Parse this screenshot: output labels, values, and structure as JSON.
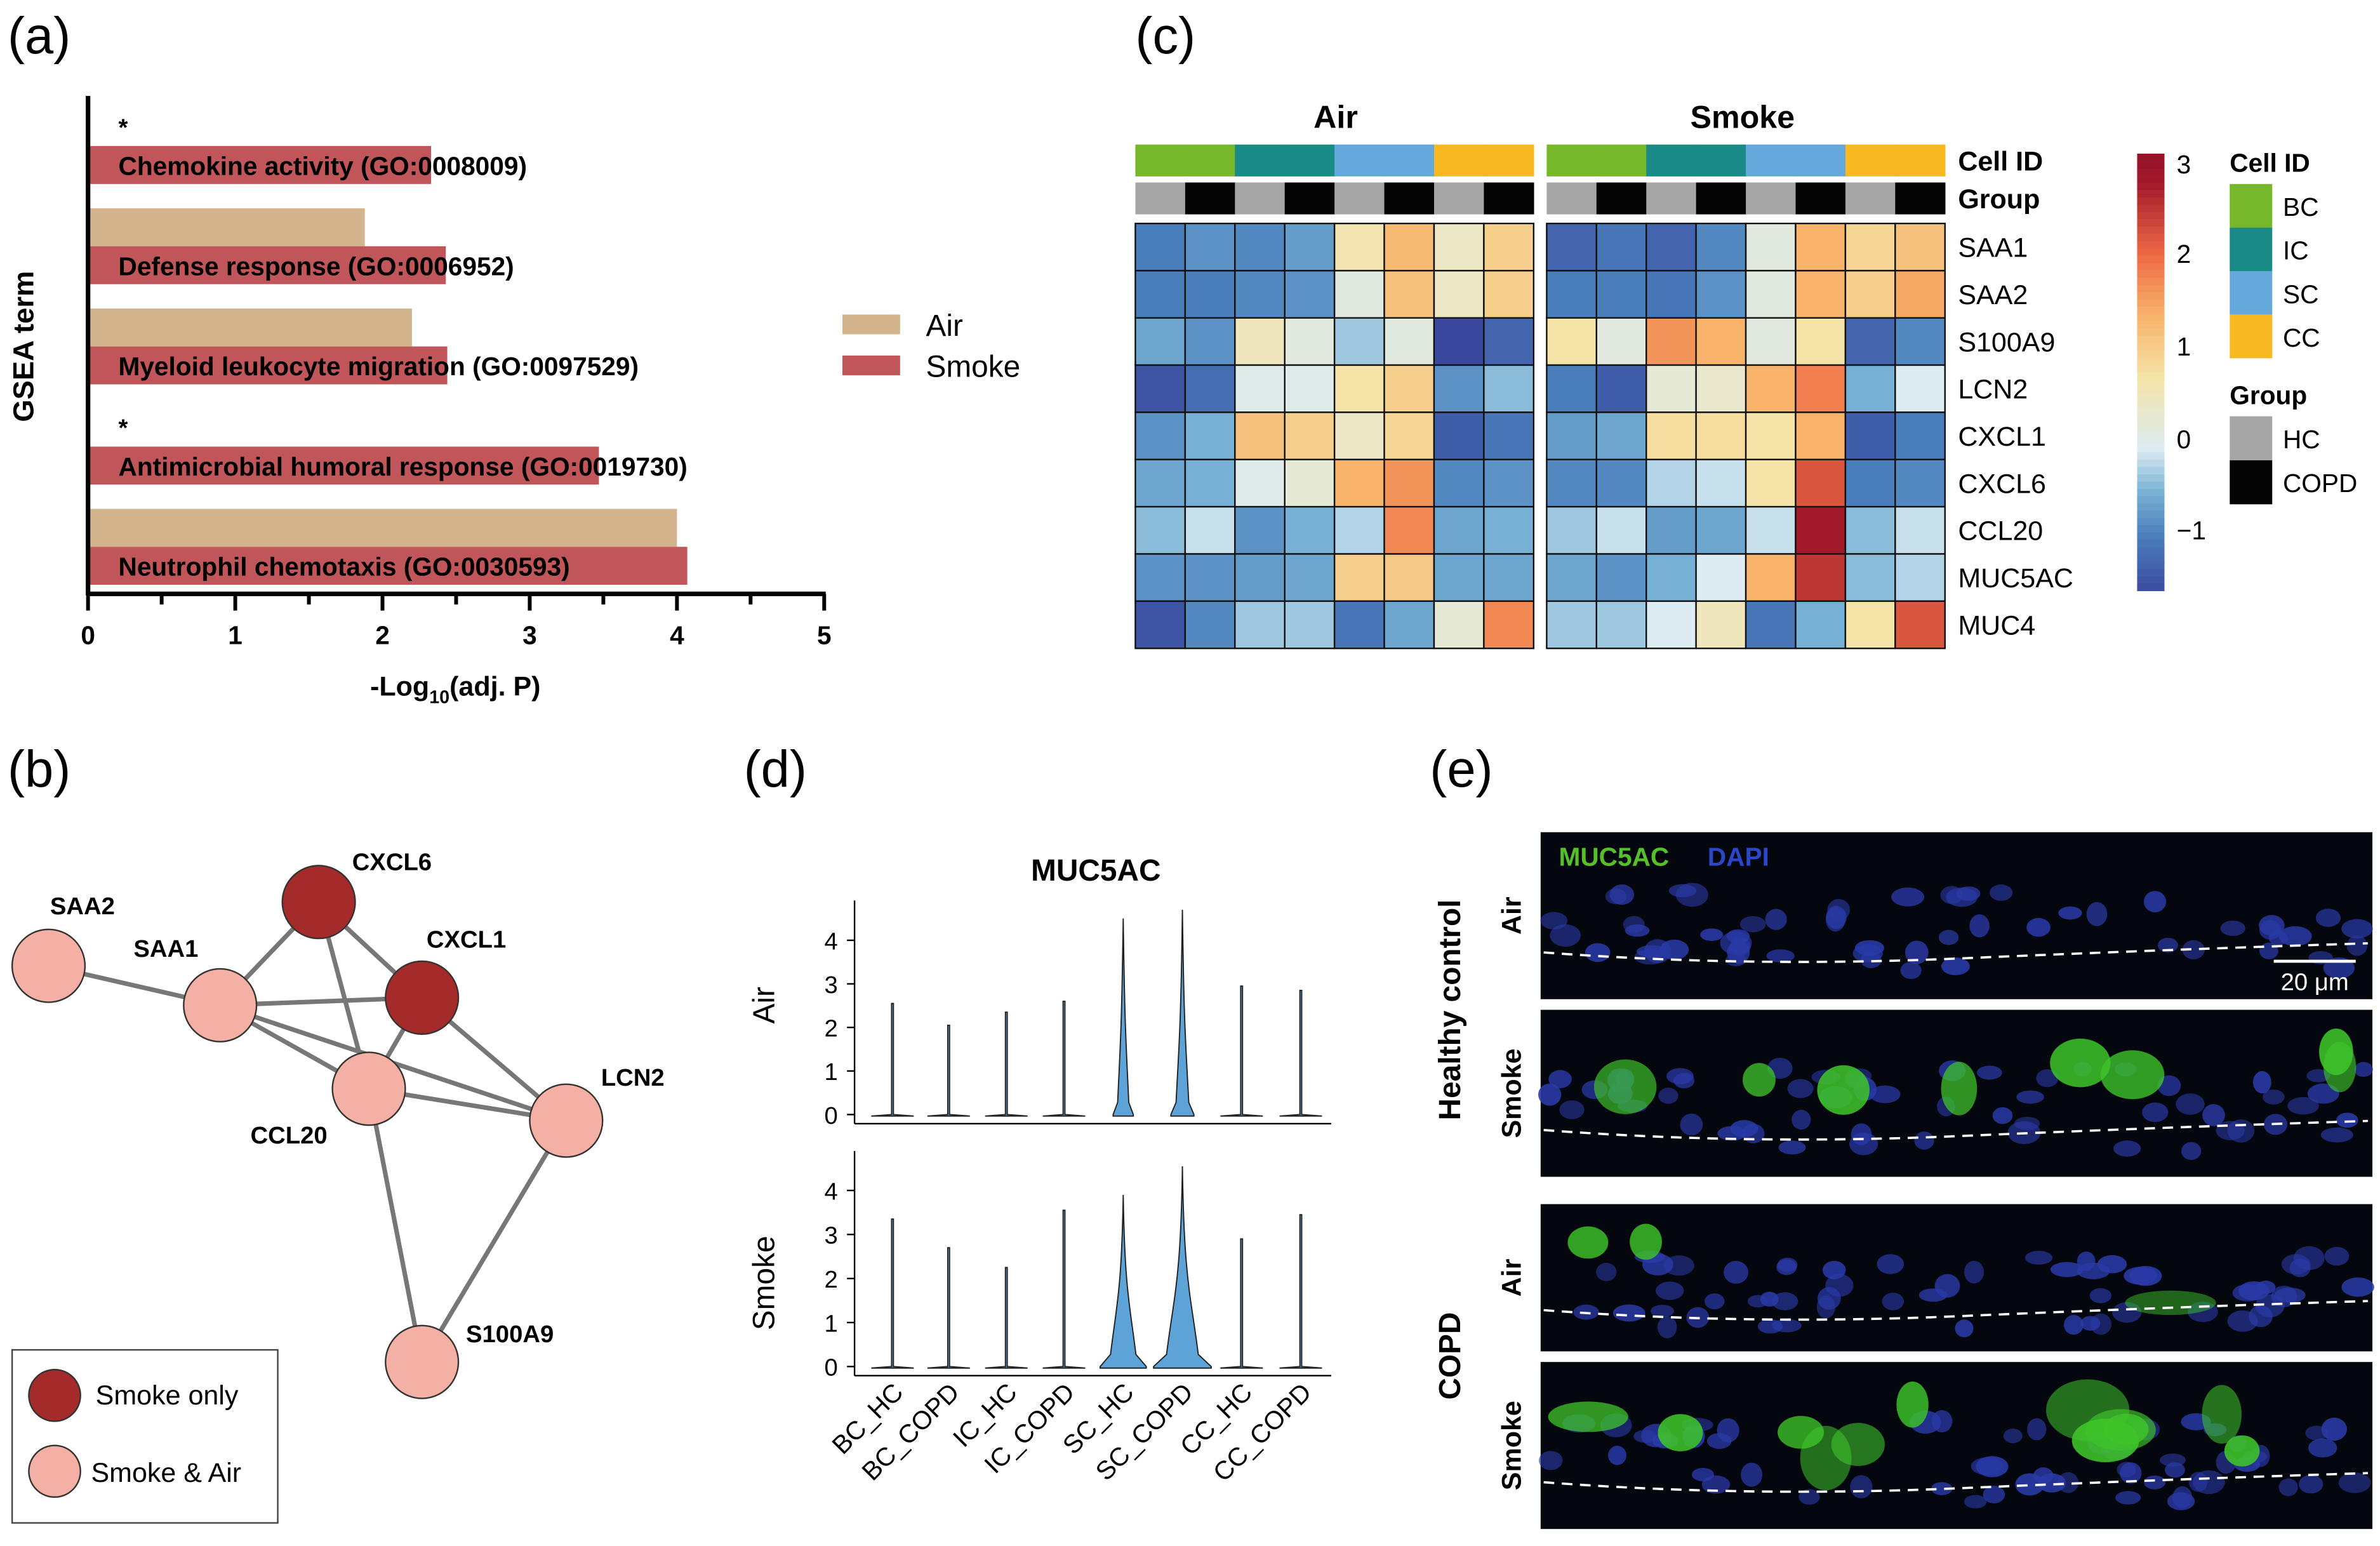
{
  "panel_labels": {
    "a": "(a)",
    "b": "(b)",
    "c": "(c)",
    "d": "(d)",
    "e": "(e)"
  },
  "colors": {
    "air": "#d4b48c",
    "smoke": "#c0565a",
    "bc": "#77b82a",
    "ic": "#1a8a86",
    "sc": "#64a8dc",
    "cc": "#f8b822",
    "hc": "#a6a6a6",
    "copd": "#050505",
    "smoke_only": "#a52a2a",
    "smoke_air": "#f4b0a4"
  },
  "chart_data": [
    {
      "type": "bar",
      "panel": "a",
      "orientation": "horizontal",
      "xlabel": "-Log10(adj. P)",
      "xlabel_main": "-Log",
      "xlabel_sub": "10",
      "xlabel_rest": "(adj. P)",
      "ylabel": "GSEA term",
      "xlim": [
        0,
        5
      ],
      "xticks": [
        "0",
        "1",
        "2",
        "3",
        "4",
        "5"
      ],
      "categories": [
        "Chemokine activity (GO:0008009)",
        "Defense response (GO:0006952)",
        "Myeloid leukocyte migration (GO:0097529)",
        "Antimicrobial humoral response (GO:0019730)",
        "Neutrophil chemotaxis (GO:0030593)"
      ],
      "significance": [
        "*",
        "",
        "",
        "*",
        ""
      ],
      "series": [
        {
          "name": "Air",
          "values": [
            null,
            1.88,
            2.2,
            null,
            4.0
          ]
        },
        {
          "name": "Smoke",
          "values": [
            2.33,
            2.43,
            2.44,
            3.47,
            4.07
          ]
        }
      ],
      "legend": [
        "Air",
        "Smoke"
      ],
      "legend_position": "right"
    },
    {
      "type": "heatmap",
      "panel": "c",
      "groups": [
        "Air",
        "Smoke"
      ],
      "annotation_labels": {
        "cell_id": "Cell ID",
        "group": "Group"
      },
      "columns_cell_id": [
        "BC",
        "BC",
        "IC",
        "IC",
        "SC",
        "SC",
        "CC",
        "CC"
      ],
      "columns_group": [
        "HC",
        "COPD",
        "HC",
        "COPD",
        "HC",
        "COPD",
        "HC",
        "COPD"
      ],
      "rows": [
        "SAA1",
        "SAA2",
        "S100A9",
        "LCN2",
        "CXCL1",
        "CXCL6",
        "CCL20",
        "MUC5AC",
        "MUC4"
      ],
      "values": {
        "Air": [
          [
            -1.0,
            -0.8,
            -0.9,
            -0.7,
            0.7,
            1.4,
            0.5,
            1.1
          ],
          [
            -1.0,
            -1.0,
            -0.9,
            -0.8,
            0.2,
            1.3,
            0.5,
            1.1
          ],
          [
            -0.6,
            -0.8,
            0.6,
            0.2,
            -0.3,
            0.2,
            -1.7,
            -1.3
          ],
          [
            -1.5,
            -1.2,
            0.1,
            0.1,
            0.8,
            1.1,
            -0.8,
            -0.4
          ],
          [
            -0.8,
            -0.5,
            1.3,
            1.1,
            0.5,
            1.0,
            -1.4,
            -1.1
          ],
          [
            -0.6,
            -0.5,
            0.1,
            0.3,
            1.5,
            1.8,
            -0.9,
            -0.8
          ],
          [
            -0.4,
            -0.1,
            -0.8,
            -0.5,
            -0.2,
            1.9,
            -0.6,
            -0.5
          ],
          [
            -0.8,
            -0.8,
            -0.7,
            -0.6,
            1.1,
            1.2,
            -0.6,
            -0.6
          ],
          [
            -1.5,
            -0.9,
            -0.3,
            -0.3,
            -1.1,
            -0.6,
            0.3,
            1.9
          ]
        ],
        "Smoke": [
          [
            -1.3,
            -1.1,
            -1.3,
            -0.9,
            0.2,
            1.5,
            1.0,
            1.3
          ],
          [
            -1.0,
            -1.0,
            -1.1,
            -0.8,
            0.2,
            1.5,
            1.1,
            1.6
          ],
          [
            0.8,
            0.2,
            1.8,
            1.5,
            0.2,
            0.8,
            -1.3,
            -0.9
          ],
          [
            -1.0,
            -1.4,
            0.3,
            0.4,
            1.5,
            2.0,
            -0.5,
            0.0
          ],
          [
            -0.7,
            -0.6,
            0.9,
            0.9,
            0.8,
            1.5,
            -1.4,
            -1.0
          ],
          [
            -0.9,
            -0.9,
            -0.2,
            -0.1,
            0.8,
            2.4,
            -1.0,
            -0.9
          ],
          [
            -0.3,
            -0.1,
            -0.7,
            -0.6,
            -0.1,
            3.0,
            -0.4,
            -0.1
          ],
          [
            -0.6,
            -0.8,
            -0.5,
            0.0,
            1.5,
            2.7,
            -0.4,
            -0.2
          ],
          [
            -0.3,
            -0.3,
            0.0,
            0.6,
            -1.1,
            -0.5,
            0.8,
            2.4
          ]
        ]
      },
      "colorbar_ticks": [
        "3",
        "2",
        "1",
        "0",
        "−1"
      ],
      "colorbar_range": [
        -1.65,
        3.3
      ],
      "legend": {
        "cell_id_title": "Cell ID",
        "cell_ids": [
          "BC",
          "IC",
          "SC",
          "CC"
        ],
        "group_title": "Group",
        "groups": [
          "HC",
          "COPD"
        ]
      }
    },
    {
      "type": "violin",
      "panel": "d",
      "title": "MUC5AC",
      "categories": [
        "BC_HC",
        "BC_COPD",
        "IC_HC",
        "IC_COPD",
        "SC_HC",
        "SC_COPD",
        "CC_HC",
        "CC_COPD"
      ],
      "yticks": [
        "0",
        "1",
        "2",
        "3",
        "4"
      ],
      "ylim": [
        0,
        4.8
      ],
      "series": [
        {
          "name": "Air",
          "max": [
            2.55,
            2.05,
            2.35,
            2.6,
            4.5,
            4.7,
            2.95,
            2.85
          ],
          "relative_width": [
            0.03,
            0.03,
            0.03,
            0.03,
            0.35,
            0.4,
            0.03,
            0.03
          ]
        },
        {
          "name": "Smoke",
          "max": [
            3.35,
            2.7,
            2.25,
            3.55,
            3.9,
            4.55,
            2.9,
            3.45
          ],
          "relative_width": [
            0.03,
            0.03,
            0.03,
            0.03,
            0.8,
            1.0,
            0.03,
            0.03
          ]
        }
      ]
    }
  ],
  "network": {
    "panel": "b",
    "nodes": [
      {
        "id": "SAA2",
        "type": "smoke_air"
      },
      {
        "id": "SAA1",
        "type": "smoke_air"
      },
      {
        "id": "CXCL6",
        "type": "smoke_only"
      },
      {
        "id": "CXCL1",
        "type": "smoke_only"
      },
      {
        "id": "CCL20",
        "type": "smoke_air"
      },
      {
        "id": "LCN2",
        "type": "smoke_air"
      },
      {
        "id": "S100A9",
        "type": "smoke_air"
      }
    ],
    "edges": [
      [
        "SAA2",
        "SAA1"
      ],
      [
        "SAA1",
        "CXCL6"
      ],
      [
        "SAA1",
        "CXCL1"
      ],
      [
        "SAA1",
        "CCL20"
      ],
      [
        "SAA1",
        "LCN2"
      ],
      [
        "CXCL6",
        "CXCL1"
      ],
      [
        "CXCL6",
        "CCL20"
      ],
      [
        "CXCL1",
        "CCL20"
      ],
      [
        "CXCL1",
        "LCN2"
      ],
      [
        "CCL20",
        "LCN2"
      ],
      [
        "CCL20",
        "S100A9"
      ],
      [
        "LCN2",
        "S100A9"
      ]
    ],
    "legend": {
      "smoke_only": "Smoke only",
      "smoke_air": "Smoke & Air"
    }
  },
  "micrographs": {
    "stain_muc5ac": "MUC5AC",
    "stain_dapi": "DAPI",
    "group_hc": "Healthy control",
    "group_copd": "COPD",
    "row_labels": [
      "Air",
      "Smoke",
      "Air",
      "Smoke"
    ],
    "scale_bar": "20 μm"
  }
}
